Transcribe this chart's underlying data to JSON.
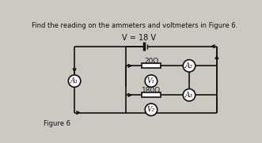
{
  "title": "Find the reading on the ammeters and voltmeters in Figure 6.",
  "voltage_label": "V = 18 V",
  "resistor1_label": "20Ω",
  "resistor2_label": "180Ω",
  "A1_label": "A₁",
  "A2_label": "A₂",
  "A3_label": "A₃",
  "V1_label": "V₁",
  "V2_label": "V₂",
  "figure_label": "Figure 6",
  "bg_color": "#ccc8c2",
  "line_color": "#111111",
  "circle_fill": "#ffffff",
  "text_color": "#111111",
  "lw": 1.2,
  "cr": 10,
  "rw": 32,
  "rh": 8
}
